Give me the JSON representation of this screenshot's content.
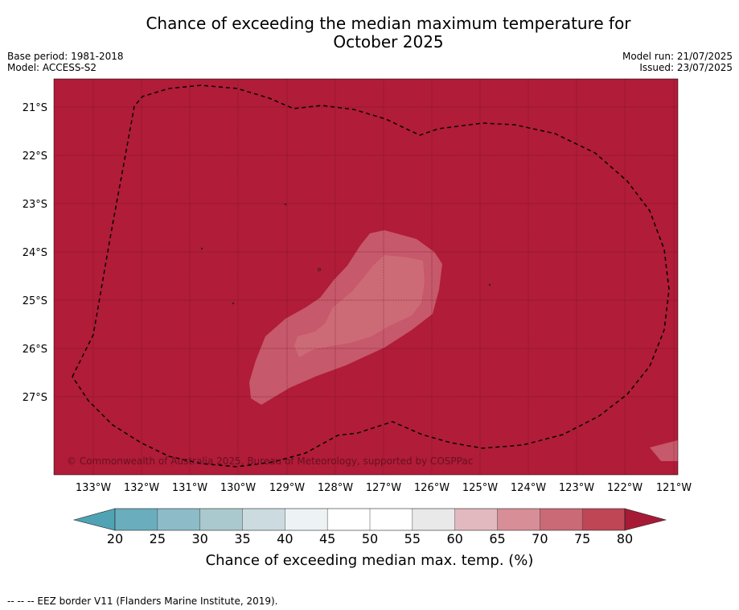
{
  "title": "Chance of exceeding the median maximum temperature for October 2025",
  "title_line1": "Chance of exceeding the median maximum temperature for",
  "title_line2": "October 2025",
  "meta_left": {
    "base_period": "Base period: 1981-2018",
    "model": "Model: ACCESS-S2"
  },
  "meta_right": {
    "model_run": "Model run: 21/07/2025",
    "issued": "Issued: 23/07/2025"
  },
  "copyright": "© Commonwealth of Australia 2025, Bureau of Meteorology, supported by COSPPac",
  "footer": "--  --  -- EEZ border V11 (Flanders Marine Institute, 2019).",
  "map": {
    "background_color": "#b11c38",
    "lat_labels": [
      "21°S",
      "22°S",
      "23°S",
      "24°S",
      "25°S",
      "26°S",
      "27°S"
    ],
    "lon_labels": [
      "133°W",
      "132°W",
      "131°W",
      "130°W",
      "129°W",
      "128°W",
      "127°W",
      "126°W",
      "125°W",
      "124°W",
      "123°W",
      "122°W",
      "121°W"
    ],
    "contour_colors": {
      "c70": "#c6596b",
      "c65": "#cc6b76"
    }
  },
  "colorbar": {
    "title": "Chance of exceeding median max. temp. (%)",
    "tick_labels": [
      "20",
      "25",
      "30",
      "35",
      "40",
      "45",
      "50",
      "55",
      "60",
      "65",
      "70",
      "75",
      "80"
    ],
    "colors": [
      "#6aaebe",
      "#8dbbc7",
      "#aac9ce",
      "#cbdbdf",
      "#edf2f4",
      "#ffffff",
      "#ffffff",
      "#e9e9e9",
      "#e2b9bf",
      "#d88e97",
      "#c96a76",
      "#bf4655"
    ],
    "under_color": "#4fa3b4",
    "over_color": "#a71a36"
  }
}
